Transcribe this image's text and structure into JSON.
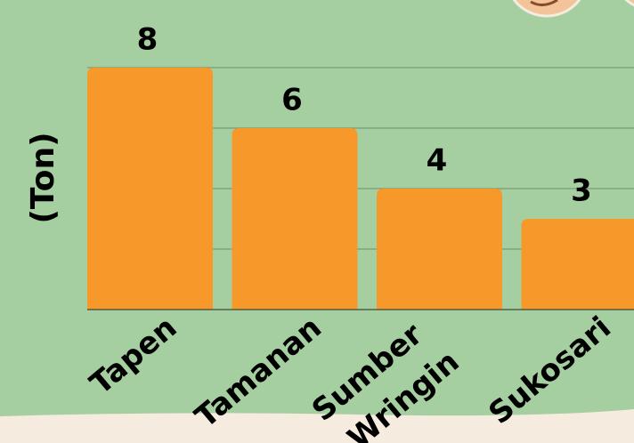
{
  "chart_data": {
    "type": "bar",
    "ylabel": "(Ton)",
    "categories": [
      "Tapen",
      "Tamanan",
      "Sumber Wringin",
      "Sukosari"
    ],
    "values": [
      8,
      6,
      4,
      3
    ],
    "color": "#f7992a",
    "ylim": [
      0,
      8
    ],
    "yticks": [
      0,
      2,
      4,
      6,
      8
    ],
    "grid": true
  }
}
